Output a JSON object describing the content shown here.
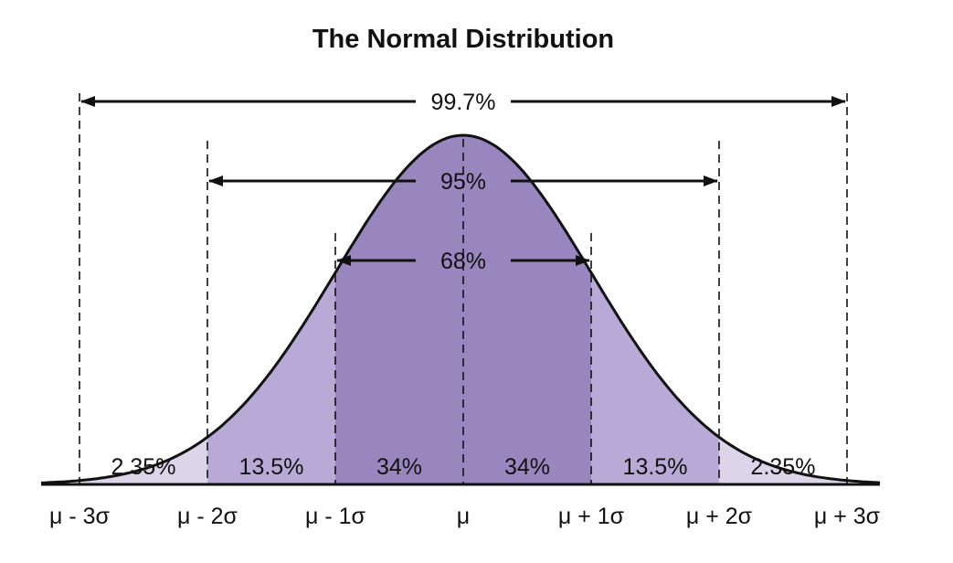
{
  "chart_data": {
    "type": "area",
    "title": "The Normal Distribution",
    "xlabel": "",
    "ylabel": "",
    "x_range": [
      -3.3,
      3.3
    ],
    "tick_labels": [
      "μ - 3σ",
      "μ - 2σ",
      "μ - 1σ",
      "μ",
      "μ + 1σ",
      "μ + 2σ",
      "μ + 3σ"
    ],
    "tick_values": [
      -3,
      -2,
      -1,
      0,
      1,
      2,
      3
    ],
    "regions": [
      {
        "from": -3,
        "to": -2,
        "label": "2.35%",
        "value": 2.35
      },
      {
        "from": -2,
        "to": -1,
        "label": "13.5%",
        "value": 13.5
      },
      {
        "from": -1,
        "to": 0,
        "label": "34%",
        "value": 34
      },
      {
        "from": 0,
        "to": 1,
        "label": "34%",
        "value": 34
      },
      {
        "from": 1,
        "to": 2,
        "label": "13.5%",
        "value": 13.5
      },
      {
        "from": 2,
        "to": 3,
        "label": "2.35%",
        "value": 2.35
      }
    ],
    "intervals": [
      {
        "from": -3,
        "to": 3,
        "label": "99.7%",
        "value": 99.7
      },
      {
        "from": -2,
        "to": 2,
        "label": "95%",
        "value": 95
      },
      {
        "from": -1,
        "to": 1,
        "label": "68%",
        "value": 68
      }
    ],
    "grid": false,
    "legend": "none"
  },
  "colors": {
    "band_1sigma": "#9a86bf",
    "band_2sigma": "#b8a9d6",
    "band_3sigma": "#dcd5ea",
    "line": "#111111"
  }
}
